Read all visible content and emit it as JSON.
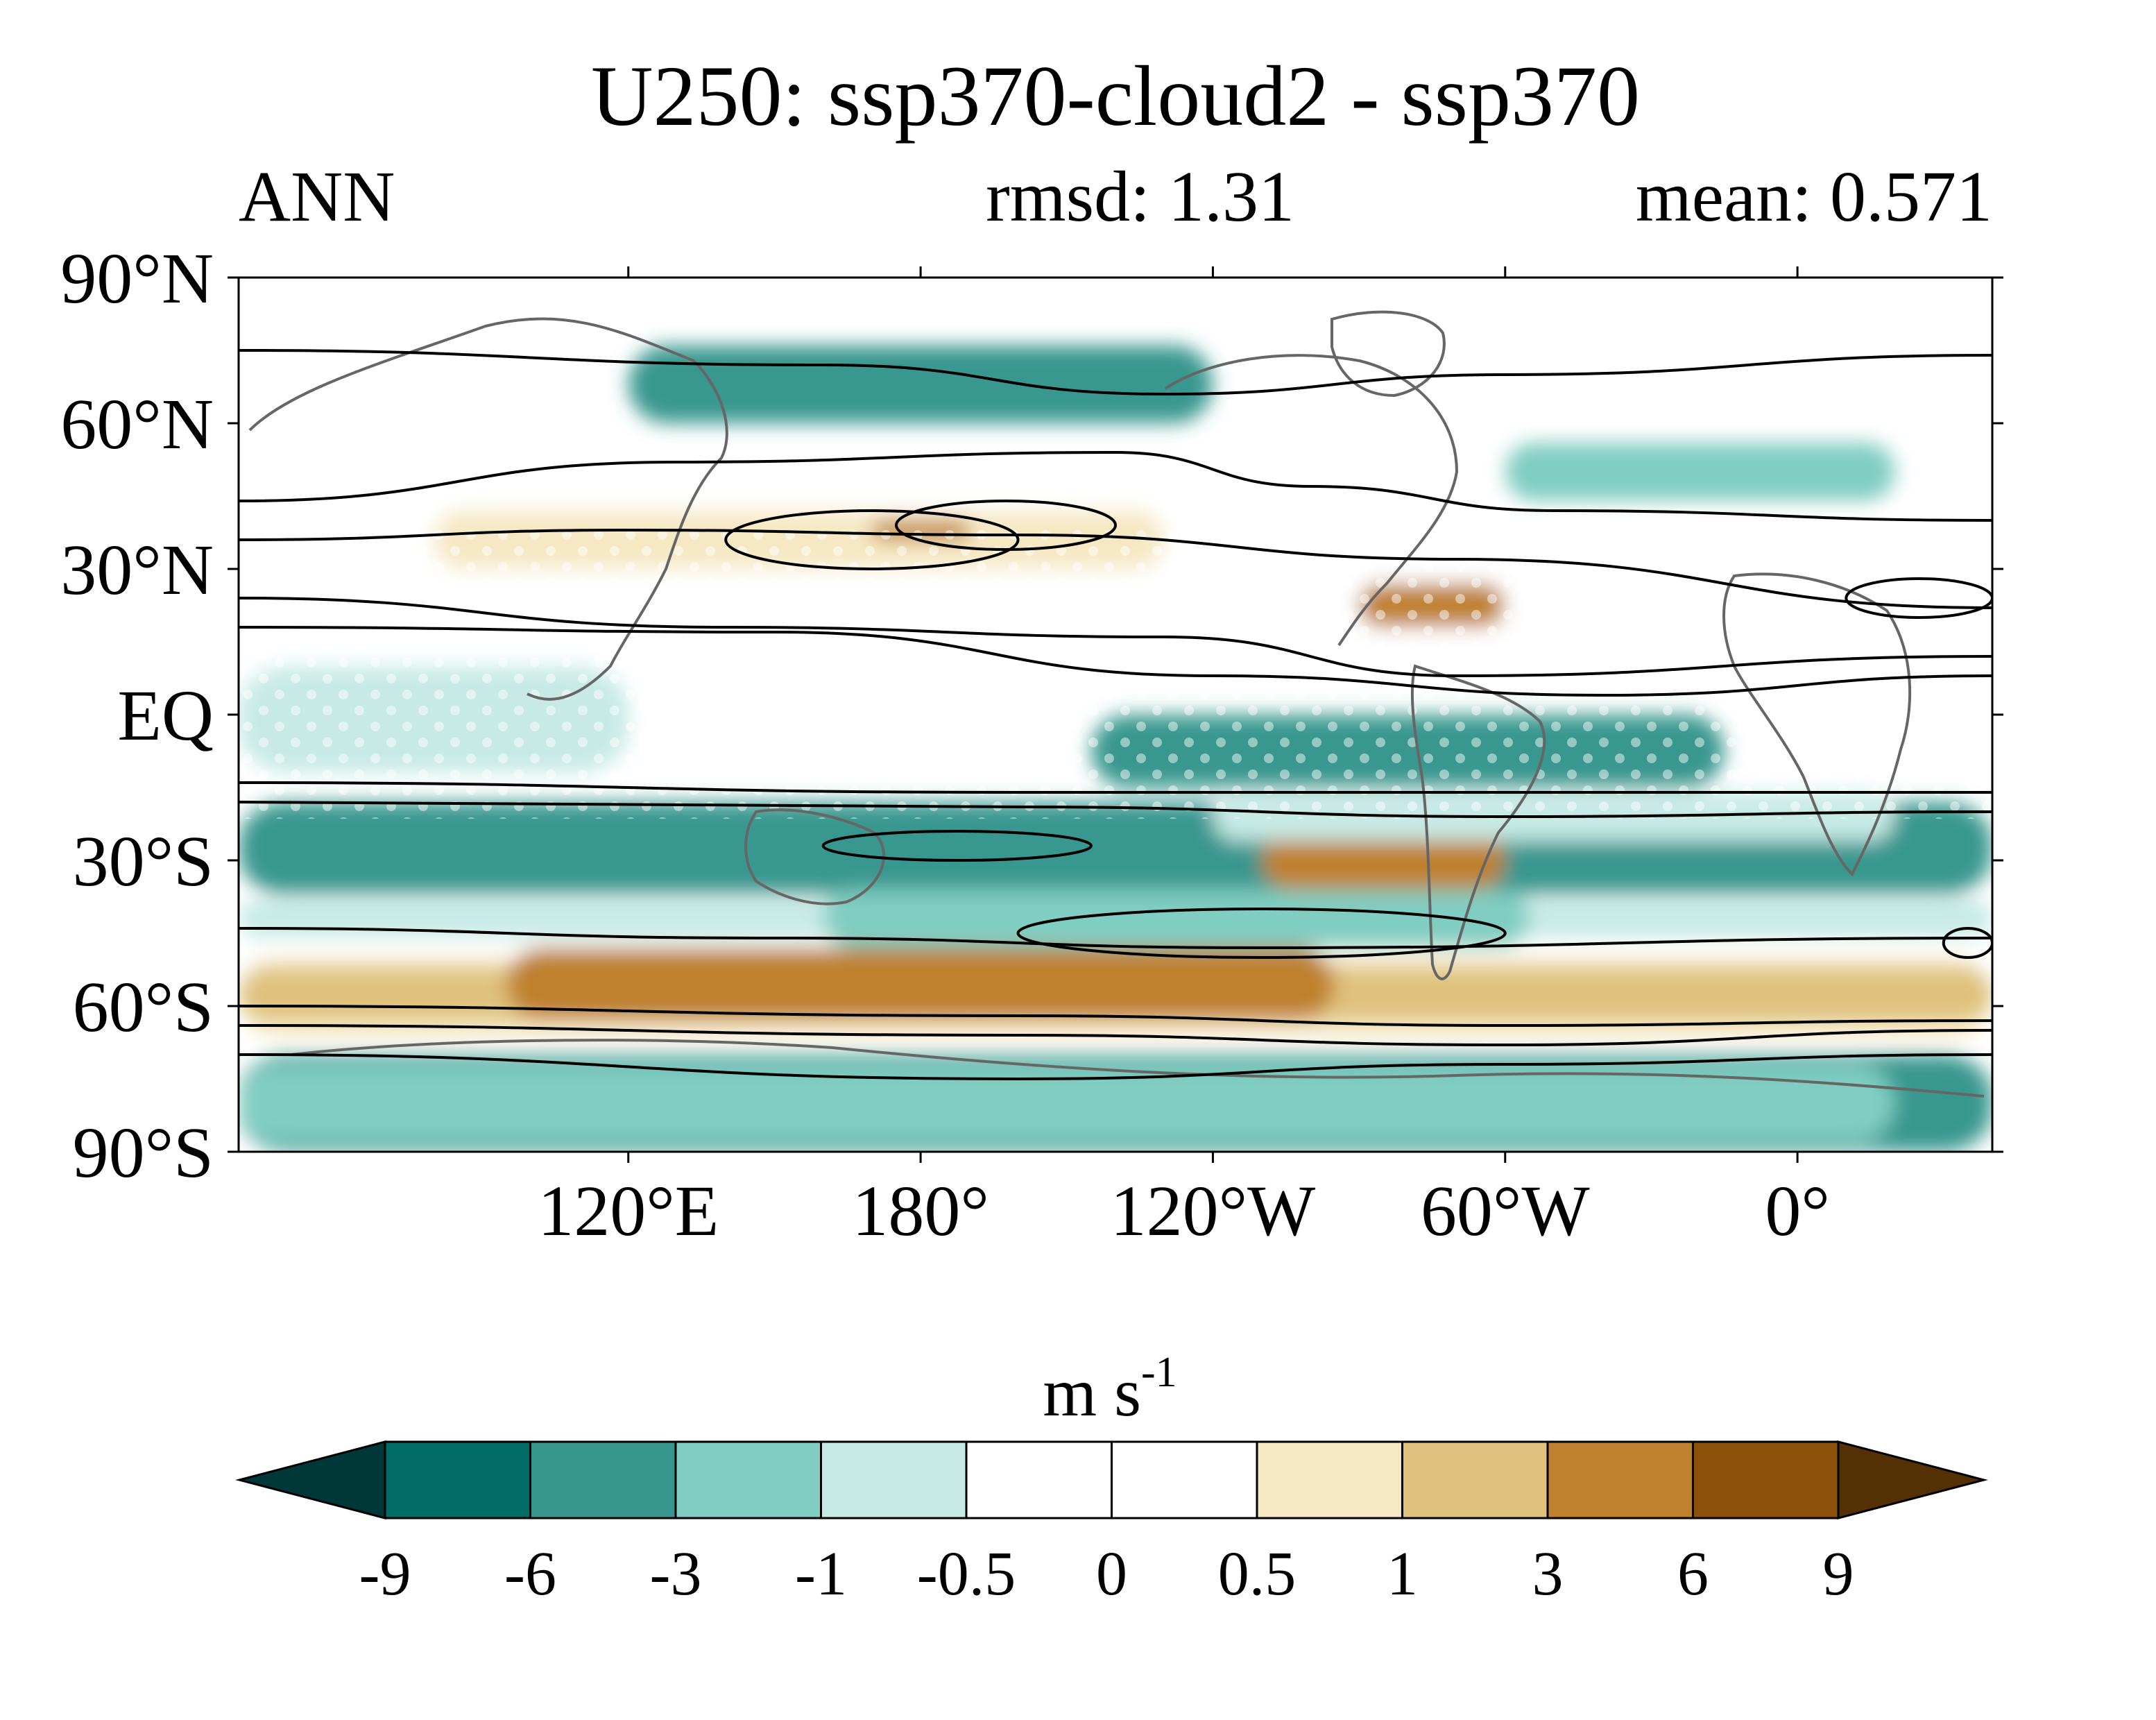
{
  "chart_data": {
    "type": "heatmap",
    "title": "U250: ssp370-cloud2 - ssp370",
    "left_subtitle": "ANN",
    "stats": [
      {
        "label": "rmsd",
        "value": 1.31,
        "text": "rmsd: 1.31"
      },
      {
        "label": "mean",
        "value": 0.571,
        "text": "mean: 0.571"
      }
    ],
    "map": {
      "projection": "equirectangular",
      "lon_range": [
        40,
        400
      ],
      "lat_range": [
        -90,
        90
      ],
      "x_ticks": [
        {
          "lon": 120,
          "label": "120°E"
        },
        {
          "lon": 180,
          "label": "180°"
        },
        {
          "lon": 240,
          "label": "120°W"
        },
        {
          "lon": 300,
          "label": "60°W"
        },
        {
          "lon": 360,
          "label": "0°"
        }
      ],
      "y_ticks": [
        {
          "lat": 90,
          "label": "90°N"
        },
        {
          "lat": 60,
          "label": "60°N"
        },
        {
          "lat": 30,
          "label": "30°N"
        },
        {
          "lat": 0,
          "label": "EQ"
        },
        {
          "lat": -30,
          "label": "30°S"
        },
        {
          "lat": -60,
          "label": "60°S"
        },
        {
          "lat": -90,
          "label": "90°S"
        }
      ],
      "field_description": "zonal-wind difference field in m s-1; stippling marks significance; black contours show climatological U250",
      "regions": [
        {
          "level": 2,
          "lon": [
            40,
            400
          ],
          "lat": [
            -90,
            -70
          ]
        },
        {
          "level": 3,
          "lon": [
            40,
            380
          ],
          "lat": [
            -88,
            -72
          ]
        },
        {
          "level": 4,
          "lon": [
            40,
            400
          ],
          "lat": [
            -62,
            -45
          ]
        },
        {
          "level": 5,
          "lon": [
            40,
            400
          ],
          "lat": [
            -66,
            -38
          ]
        },
        {
          "level": 7,
          "lon": [
            40,
            400
          ],
          "lat": [
            -66,
            -50
          ]
        },
        {
          "level": 8,
          "lon": [
            40,
            400
          ],
          "lat": [
            -63,
            -52
          ]
        },
        {
          "level": 9,
          "lon": [
            95,
            265
          ],
          "lat": [
            -63,
            -48
          ]
        },
        {
          "level": 3,
          "lon": [
            40,
            400
          ],
          "lat": [
            -35,
            -20
          ]
        },
        {
          "level": 2,
          "lon": [
            40,
            400
          ],
          "lat": [
            -37,
            -18
          ]
        },
        {
          "level": 4,
          "lon": [
            40,
            400
          ],
          "lat": [
            -46,
            -38
          ]
        },
        {
          "level": 3,
          "lon": [
            160,
            305
          ],
          "lat": [
            -48,
            -36
          ]
        },
        {
          "level": 9,
          "lon": [
            250,
            300
          ],
          "lat": [
            -36,
            -24
          ]
        },
        {
          "level": 3,
          "lon": [
            230,
            330
          ],
          "lat": [
            -12,
            -2
          ]
        },
        {
          "level": 2,
          "lon": [
            215,
            345
          ],
          "lat": [
            -15,
            0
          ]
        },
        {
          "level": 5,
          "lon": [
            40,
            400
          ],
          "lat": [
            15,
            40
          ]
        },
        {
          "level": 6,
          "lon": [
            40,
            400
          ],
          "lat": [
            20,
            32
          ]
        },
        {
          "level": 6,
          "lon": [
            80,
            220
          ],
          "lat": [
            28,
            48
          ]
        },
        {
          "level": 7,
          "lon": [
            80,
            230
          ],
          "lat": [
            30,
            42
          ]
        },
        {
          "level": 9,
          "lon": [
            270,
            300
          ],
          "lat": [
            18,
            27
          ]
        },
        {
          "level": 9,
          "lon": [
            170,
            190
          ],
          "lat": [
            36,
            40
          ]
        },
        {
          "level": 3,
          "lon": [
            300,
            380
          ],
          "lat": [
            44,
            56
          ]
        },
        {
          "level": 2,
          "lon": [
            120,
            240
          ],
          "lat": [
            60,
            76
          ]
        },
        {
          "level": 4,
          "lon": [
            240,
            380
          ],
          "lat": [
            -26,
            -16
          ]
        },
        {
          "level": 4,
          "lon": [
            40,
            120
          ],
          "lat": [
            -12,
            10
          ]
        }
      ]
    },
    "colorbar": {
      "unit_base": "m s",
      "unit_exp": "-1",
      "boundaries": [
        -9,
        -6,
        -3,
        -1,
        -0.5,
        0,
        0.5,
        1,
        3,
        6,
        9
      ],
      "tick_labels": [
        "-9",
        "-6",
        "-3",
        "-1",
        "-0.5",
        "0",
        "0.5",
        "1",
        "3",
        "6",
        "9"
      ],
      "colors": [
        "#00383a",
        "#016b66",
        "#37978f",
        "#80cdc1",
        "#c7eae5",
        "#ffffff",
        "#ffffff",
        "#f6e8c3",
        "#dfc27d",
        "#bf812d",
        "#8c510a",
        "#543005"
      ],
      "extend": "both"
    }
  }
}
